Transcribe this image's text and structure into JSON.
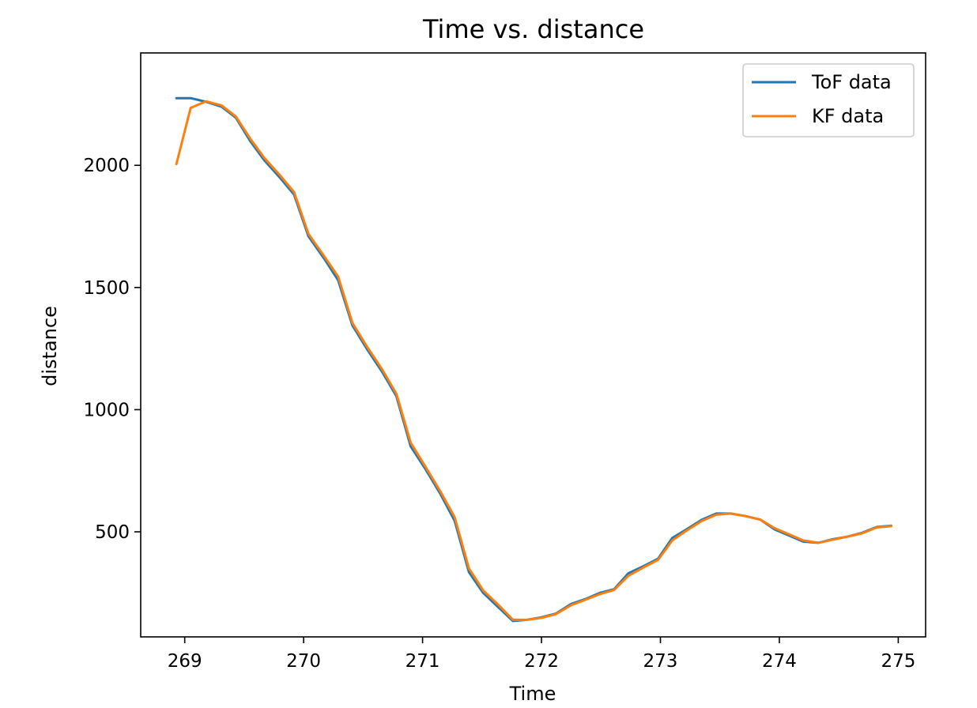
{
  "chart_data": {
    "type": "line",
    "title": "Time vs. distance",
    "xlabel": "Time",
    "ylabel": "distance",
    "xlim": [
      268.63,
      275.23
    ],
    "ylim": [
      70,
      2460
    ],
    "xticks": [
      269,
      270,
      271,
      272,
      273,
      274,
      275
    ],
    "yticks": [
      500,
      1000,
      1500,
      2000
    ],
    "legend": {
      "position": "top-right"
    },
    "grid": false,
    "series": [
      {
        "name": "ToF data",
        "color": "#1f77b4",
        "x": [
          268.93,
          269.05,
          269.18,
          269.31,
          269.43,
          269.55,
          269.67,
          269.8,
          269.92,
          270.04,
          270.17,
          270.29,
          270.41,
          270.53,
          270.66,
          270.78,
          270.9,
          271.02,
          271.15,
          271.27,
          271.39,
          271.51,
          271.64,
          271.76,
          271.88,
          272.0,
          272.12,
          272.25,
          272.37,
          272.49,
          272.61,
          272.73,
          272.86,
          272.98,
          273.1,
          273.22,
          273.35,
          273.47,
          273.59,
          273.71,
          273.84,
          273.96,
          274.08,
          274.2,
          274.33,
          274.45,
          274.57,
          274.69,
          274.82,
          274.94
        ],
        "y": [
          2275,
          2275,
          2260,
          2240,
          2195,
          2100,
          2020,
          1950,
          1880,
          1710,
          1620,
          1530,
          1345,
          1250,
          1155,
          1055,
          850,
          760,
          655,
          545,
          335,
          250,
          190,
          135,
          140,
          150,
          165,
          205,
          225,
          250,
          265,
          330,
          360,
          390,
          475,
          510,
          550,
          575,
          575,
          565,
          550,
          510,
          485,
          460,
          455,
          470,
          480,
          495,
          520,
          525
        ]
      },
      {
        "name": "KF data",
        "color": "#ff7f0e",
        "x": [
          268.93,
          269.05,
          269.18,
          269.31,
          269.43,
          269.55,
          269.67,
          269.8,
          269.92,
          270.04,
          270.17,
          270.29,
          270.41,
          270.53,
          270.66,
          270.78,
          270.9,
          271.02,
          271.15,
          271.27,
          271.39,
          271.51,
          271.64,
          271.76,
          271.88,
          272.0,
          272.12,
          272.25,
          272.37,
          272.49,
          272.61,
          272.73,
          272.86,
          272.98,
          273.1,
          273.22,
          273.35,
          273.47,
          273.59,
          273.71,
          273.84,
          273.96,
          274.08,
          274.2,
          274.33,
          274.45,
          274.57,
          274.69,
          274.82,
          274.94
        ],
        "y": [
          2005,
          2235,
          2262,
          2245,
          2200,
          2110,
          2030,
          1960,
          1890,
          1720,
          1630,
          1545,
          1355,
          1260,
          1165,
          1065,
          865,
          770,
          665,
          560,
          350,
          260,
          200,
          140,
          140,
          148,
          163,
          200,
          222,
          245,
          262,
          320,
          355,
          385,
          465,
          505,
          545,
          570,
          575,
          565,
          550,
          515,
          490,
          465,
          455,
          468,
          480,
          493,
          518,
          523
        ]
      }
    ]
  }
}
